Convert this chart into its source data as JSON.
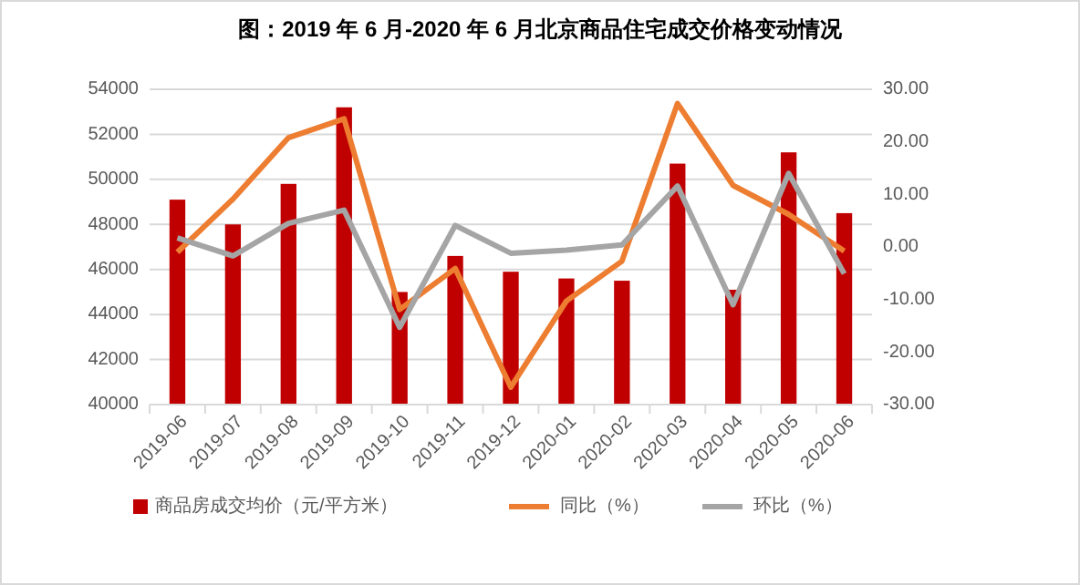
{
  "chart_data": {
    "type": "bar",
    "title": "图：2019 年 6 月-2020 年 6 月北京商品住宅成交价格变动情况",
    "categories": [
      "2019-06",
      "2019-07",
      "2019-08",
      "2019-09",
      "2019-10",
      "2019-11",
      "2019-12",
      "2020-01",
      "2020-02",
      "2020-03",
      "2020-04",
      "2020-05",
      "2020-06"
    ],
    "series": [
      {
        "name": "商品房成交均价（元/平方米）",
        "color": "#c00000",
        "values": [
          49100,
          48000,
          49800,
          53200,
          45000,
          46600,
          45900,
          45600,
          45500,
          50700,
          45100,
          51200,
          48500
        ]
      },
      {
        "name": "同比（%）",
        "type": "line",
        "axis": "y2",
        "color": "#ed7d31",
        "values": [
          -1.0,
          9.1,
          20.8,
          24.4,
          -11.9,
          -4.1,
          -26.7,
          -10.3,
          -2.7,
          27.3,
          11.7,
          6.2,
          -0.8
        ]
      },
      {
        "name": "环比（%）",
        "type": "line",
        "axis": "y2",
        "color": "#a5a5a5",
        "values": [
          1.7,
          -1.7,
          4.5,
          7.0,
          -15.3,
          4.1,
          -1.2,
          -0.6,
          0.4,
          11.6,
          -11.0,
          14.0,
          -5.1
        ]
      }
    ],
    "ylim": [
      40000,
      54000
    ],
    "yticks": [
      40000,
      42000,
      44000,
      46000,
      48000,
      50000,
      52000,
      54000
    ],
    "y2lim": [
      -30,
      30
    ],
    "y2ticks": [
      {
        "value": -30,
        "label": "-30.00"
      },
      {
        "value": -20,
        "label": "-20.00"
      },
      {
        "value": -10,
        "label": "-10.00"
      },
      {
        "value": 0,
        "label": "0.00"
      },
      {
        "value": 10,
        "label": "10.00"
      },
      {
        "value": 20,
        "label": "20.00"
      },
      {
        "value": 30,
        "label": "30.00"
      }
    ],
    "grid": "y",
    "legend": "bottom"
  }
}
